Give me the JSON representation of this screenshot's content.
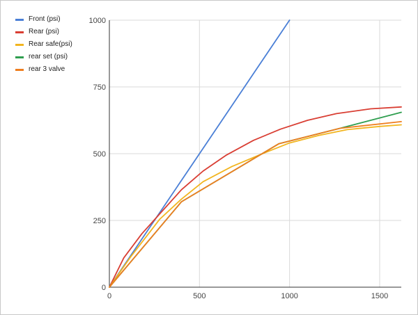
{
  "chart_data": {
    "type": "line",
    "xlim": [
      0,
      1620
    ],
    "ylim": [
      0,
      1000
    ],
    "x_ticks": [
      "0",
      "500",
      "1000",
      "1500"
    ],
    "y_ticks": [
      "0",
      "250",
      "500",
      "750",
      "1000"
    ],
    "grid": true,
    "legend_position": "top-left",
    "series": [
      {
        "name": "Front (psi)",
        "color": "#4a7fd6",
        "points": [
          [
            0,
            0
          ],
          [
            200,
            200
          ],
          [
            400,
            400
          ],
          [
            600,
            600
          ],
          [
            800,
            800
          ],
          [
            1000,
            1000
          ]
        ]
      },
      {
        "name": "Rear (psi)",
        "color": "#d93e33",
        "points": [
          [
            0,
            0
          ],
          [
            80,
            110
          ],
          [
            180,
            200
          ],
          [
            300,
            290
          ],
          [
            400,
            365
          ],
          [
            520,
            435
          ],
          [
            650,
            495
          ],
          [
            800,
            550
          ],
          [
            950,
            592
          ],
          [
            1100,
            625
          ],
          [
            1260,
            650
          ],
          [
            1450,
            668
          ],
          [
            1620,
            675
          ]
        ]
      },
      {
        "name": "Rear safe(psi)",
        "color": "#f2b51f",
        "points": [
          [
            0,
            0
          ],
          [
            120,
            115
          ],
          [
            280,
            255
          ],
          [
            400,
            330
          ],
          [
            520,
            395
          ],
          [
            680,
            452
          ],
          [
            850,
            500
          ],
          [
            1000,
            540
          ],
          [
            1160,
            568
          ],
          [
            1320,
            590
          ],
          [
            1500,
            602
          ],
          [
            1620,
            608
          ]
        ]
      },
      {
        "name": "rear set (psi)",
        "color": "#2f9e4f",
        "points": [
          [
            0,
            0
          ],
          [
            400,
            320
          ],
          [
            940,
            537
          ],
          [
            1280,
            595
          ],
          [
            1620,
            655
          ]
        ]
      },
      {
        "name": "rear 3 valve",
        "color": "#ef7e1f",
        "points": [
          [
            0,
            0
          ],
          [
            400,
            320
          ],
          [
            940,
            537
          ],
          [
            1280,
            595
          ],
          [
            1620,
            620
          ]
        ]
      }
    ]
  }
}
